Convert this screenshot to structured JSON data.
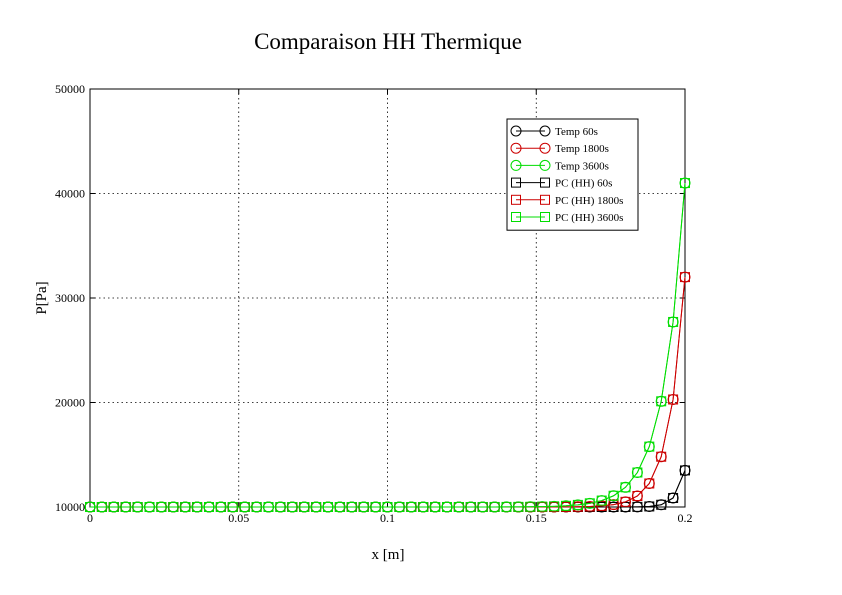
{
  "chart_data": {
    "type": "line",
    "title": "Comparaison HH Thermique",
    "xlabel": "x [m]",
    "ylabel": "P[Pa]",
    "xlim": [
      0,
      0.2
    ],
    "ylim": [
      10000,
      50000
    ],
    "xticks": [
      0,
      0.05,
      0.1,
      0.15,
      0.2
    ],
    "xtick_labels": [
      "0",
      "0.05",
      "0.1",
      "0.15",
      "0.2"
    ],
    "yticks": [
      10000,
      20000,
      30000,
      40000,
      50000
    ],
    "ytick_labels": [
      "10000",
      "20000",
      "30000",
      "40000",
      "50000"
    ],
    "grid": true,
    "legend_position": "top-right",
    "series": [
      {
        "name": "Temp 60s",
        "color": "#000000",
        "marker": "circle",
        "growth": 350,
        "end": 13500
      },
      {
        "name": "Temp 1800s",
        "color": "#cc0000",
        "marker": "circle",
        "growth": 190,
        "end": 32000
      },
      {
        "name": "Temp 3600s",
        "color": "#00dd00",
        "marker": "circle",
        "growth": 140,
        "end": 41000
      },
      {
        "name": "PC (HH) 60s",
        "color": "#000000",
        "marker": "square",
        "growth": 350,
        "end": 13500
      },
      {
        "name": "PC (HH) 1800s",
        "color": "#cc0000",
        "marker": "square",
        "growth": 190,
        "end": 32000
      },
      {
        "name": "PC (HH) 3600s",
        "color": "#00dd00",
        "marker": "square",
        "growth": 140,
        "end": 41000
      }
    ],
    "x_start": 0,
    "x_step": 0.004,
    "baseline": 10000
  }
}
